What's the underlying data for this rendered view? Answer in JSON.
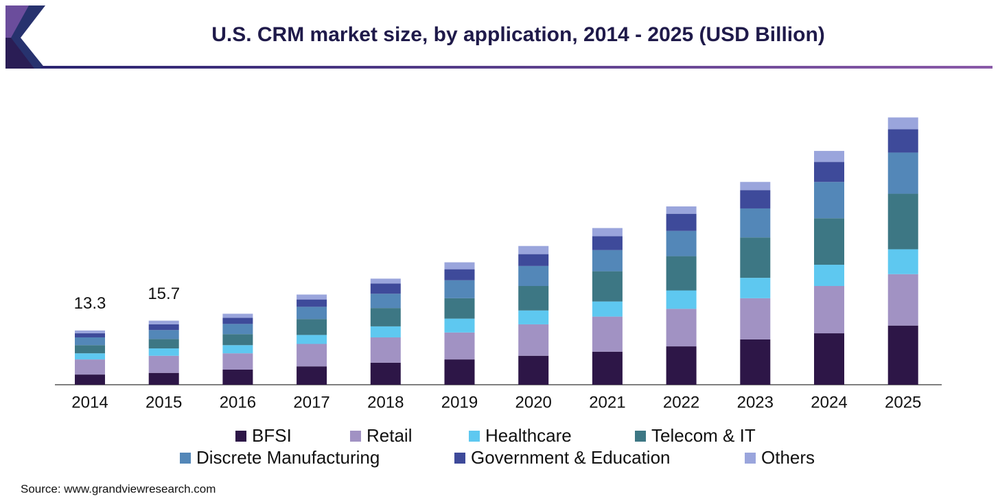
{
  "chart_data": {
    "type": "stacked_bar",
    "title": "U.S. CRM market size, by application, 2014 - 2025 (USD Billion)",
    "source": "Source: www.grandviewresearch.com",
    "categories": [
      "2014",
      "2015",
      "2016",
      "2017",
      "2018",
      "2019",
      "2020",
      "2021",
      "2022",
      "2023",
      "2024",
      "2025"
    ],
    "totals": [
      13.3,
      15.7,
      null,
      null,
      null,
      null,
      null,
      null,
      null,
      null,
      null,
      null
    ],
    "series": [
      {
        "name": "BFSI",
        "color": "#2d1647",
        "values": [
          2.5,
          2.9,
          3.7,
          4.5,
          5.4,
          6.2,
          7.1,
          8.1,
          9.4,
          11.1,
          12.6,
          14.5
        ]
      },
      {
        "name": "Retail",
        "color": "#a192c3",
        "values": [
          3.7,
          4.2,
          4.0,
          5.5,
          6.2,
          6.6,
          7.7,
          8.6,
          9.2,
          10.1,
          11.6,
          12.6
        ]
      },
      {
        "name": "Healthcare",
        "color": "#5ec8f0",
        "values": [
          1.5,
          1.8,
          2.0,
          2.2,
          2.7,
          3.4,
          3.4,
          3.7,
          4.5,
          5.0,
          5.2,
          6.1
        ]
      },
      {
        "name": "Telecom & IT",
        "color": "#3d7784",
        "values": [
          2.0,
          2.3,
          2.7,
          3.9,
          4.5,
          5.0,
          6.0,
          7.4,
          8.4,
          9.9,
          11.4,
          13.6
        ]
      },
      {
        "name": "Discrete Manufacturing",
        "color": "#5387b8",
        "values": [
          1.9,
          2.2,
          2.5,
          3.0,
          3.5,
          4.4,
          4.9,
          5.2,
          6.2,
          7.1,
          8.9,
          10.1
        ]
      },
      {
        "name": "Government & Education",
        "color": "#3e4a9a",
        "values": [
          1.0,
          1.4,
          1.5,
          1.8,
          2.5,
          2.7,
          2.9,
          3.4,
          4.2,
          4.5,
          4.9,
          5.7
        ]
      },
      {
        "name": "Others",
        "color": "#9aa5dc",
        "values": [
          0.7,
          0.9,
          1.0,
          1.2,
          1.2,
          1.7,
          2.0,
          2.0,
          1.8,
          2.0,
          2.7,
          2.9
        ]
      }
    ]
  }
}
